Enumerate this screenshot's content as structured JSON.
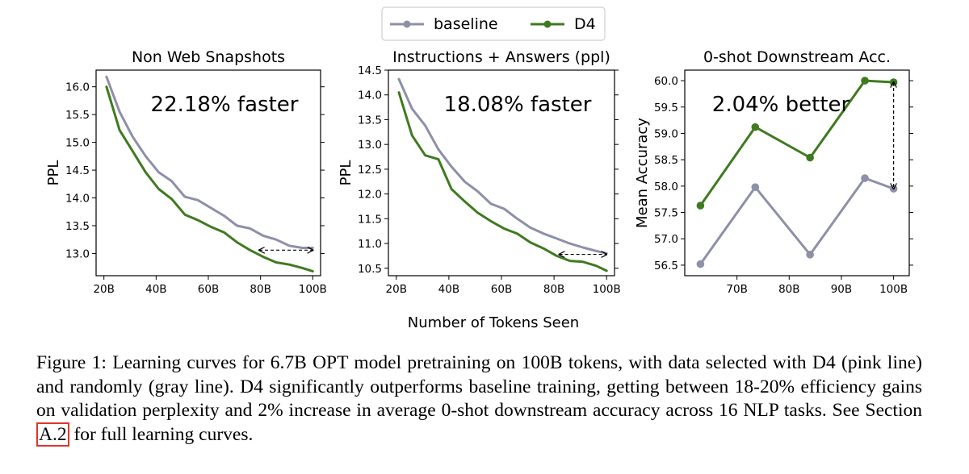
{
  "figure": {
    "shared_xlabel": "Number of Tokens Seen",
    "caption": {
      "before_ref": "Figure 1: Learning curves for 6.7B OPT model pretraining on 100B tokens, with data selected with D4 (pink line) and randomly (gray line). D4 significantly outperforms baseline training, getting between 18-20% efficiency gains on validation perplexity and 2% increase in average 0-shot downstream accuracy across 16 NLP tasks. See Section ",
      "ref": "A.2",
      "after_ref": " for full learning curves."
    }
  },
  "legend": {
    "placement": "top-center",
    "entries": [
      {
        "label": "baseline",
        "color": "#8e8fa8"
      },
      {
        "label": "D4",
        "color": "#3f7a20"
      }
    ]
  },
  "colors": {
    "baseline": "#8e8fa8",
    "d4": "#3f7a20",
    "annotation": "#7b1f7f"
  },
  "chart_data": [
    {
      "type": "line",
      "title": "Non Web Snapshots",
      "xlabel": "",
      "ylabel": "PPL",
      "xlim": [
        17,
        103
      ],
      "ylim": [
        12.6,
        16.3
      ],
      "xticks": [
        20,
        40,
        60,
        80,
        100
      ],
      "xtick_labels": [
        "20B",
        "40B",
        "60B",
        "80B",
        "100B"
      ],
      "yticks": [
        13.0,
        13.5,
        14.0,
        14.5,
        15.0,
        15.5,
        16.0
      ],
      "ytick_labels": [
        "13.0",
        "13.5",
        "14.0",
        "14.5",
        "15.0",
        "15.5",
        "16.0"
      ],
      "annotation": "22.18% faster",
      "arrow": {
        "from": [
          79.5,
          13.06
        ],
        "to": [
          100,
          13.06
        ]
      },
      "series": [
        {
          "name": "baseline",
          "markers": false,
          "x": [
            21,
            26,
            31,
            36,
            41,
            46,
            51,
            56,
            61,
            66,
            71,
            76,
            81,
            86,
            91,
            96,
            100
          ],
          "y": [
            16.18,
            15.55,
            15.1,
            14.75,
            14.46,
            14.3,
            14.02,
            13.96,
            13.82,
            13.68,
            13.5,
            13.45,
            13.32,
            13.25,
            13.14,
            13.1,
            13.1
          ]
        },
        {
          "name": "D4",
          "markers": false,
          "x": [
            21,
            26,
            31,
            36,
            41,
            46,
            51,
            56,
            61,
            66,
            71,
            76,
            81,
            86,
            91,
            96,
            100
          ],
          "y": [
            16.0,
            15.22,
            14.84,
            14.46,
            14.16,
            13.98,
            13.7,
            13.6,
            13.48,
            13.38,
            13.2,
            13.06,
            12.94,
            12.84,
            12.8,
            12.74,
            12.68
          ]
        }
      ]
    },
    {
      "type": "line",
      "title": "Instructions + Answers (ppl)",
      "xlabel": "",
      "ylabel": "PPL",
      "xlim": [
        17,
        103
      ],
      "ylim": [
        10.35,
        14.5
      ],
      "xticks": [
        20,
        40,
        60,
        80,
        100
      ],
      "xtick_labels": [
        "20B",
        "40B",
        "60B",
        "80B",
        "100B"
      ],
      "yticks": [
        10.5,
        11.0,
        11.5,
        12.0,
        12.5,
        13.0,
        13.5,
        14.0,
        14.5
      ],
      "ytick_labels": [
        "10.5",
        "11.0",
        "11.5",
        "12.0",
        "12.5",
        "13.0",
        "13.5",
        "14.0",
        "14.5"
      ],
      "annotation": "18.08% faster",
      "arrow": {
        "from": [
          82,
          10.78
        ],
        "to": [
          100,
          10.78
        ]
      },
      "series": [
        {
          "name": "baseline",
          "markers": false,
          "x": [
            21,
            26,
            31,
            36,
            41,
            46,
            51,
            56,
            61,
            66,
            71,
            76,
            81,
            86,
            91,
            96,
            100
          ],
          "y": [
            14.32,
            13.72,
            13.38,
            12.9,
            12.55,
            12.25,
            12.05,
            11.8,
            11.7,
            11.5,
            11.32,
            11.2,
            11.1,
            11.0,
            10.92,
            10.85,
            10.8
          ]
        },
        {
          "name": "D4",
          "markers": false,
          "x": [
            21,
            26,
            31,
            36,
            41,
            46,
            51,
            56,
            61,
            66,
            71,
            76,
            81,
            86,
            91,
            96,
            100
          ],
          "y": [
            14.05,
            13.18,
            12.78,
            12.7,
            12.1,
            11.85,
            11.62,
            11.45,
            11.3,
            11.2,
            11.02,
            10.9,
            10.75,
            10.65,
            10.63,
            10.55,
            10.45
          ]
        }
      ]
    },
    {
      "type": "line",
      "title": "0-shot Downstream Acc.",
      "xlabel": "",
      "ylabel": "Mean Accuracy",
      "xlim": [
        60,
        103
      ],
      "ylim": [
        56.3,
        60.2
      ],
      "xticks": [
        70,
        80,
        90,
        100
      ],
      "xtick_labels": [
        "70B",
        "80B",
        "90B",
        "100B"
      ],
      "yticks": [
        56.5,
        57.0,
        57.5,
        58.0,
        58.5,
        59.0,
        59.5,
        60.0
      ],
      "ytick_labels": [
        "56.5",
        "57.0",
        "57.5",
        "58.0",
        "58.5",
        "59.0",
        "59.5",
        "60.0"
      ],
      "annotation": "2.04% better",
      "arrow": {
        "from": [
          100,
          59.97
        ],
        "to": [
          100,
          57.95
        ]
      },
      "series": [
        {
          "name": "baseline",
          "markers": true,
          "x": [
            63,
            73.5,
            84,
            94.5,
            100
          ],
          "y": [
            56.52,
            57.98,
            56.7,
            58.15,
            57.95
          ]
        },
        {
          "name": "D4",
          "markers": true,
          "x": [
            63,
            73.5,
            84,
            94.5,
            100
          ],
          "y": [
            57.63,
            59.12,
            58.54,
            60.0,
            59.97
          ]
        }
      ]
    }
  ]
}
